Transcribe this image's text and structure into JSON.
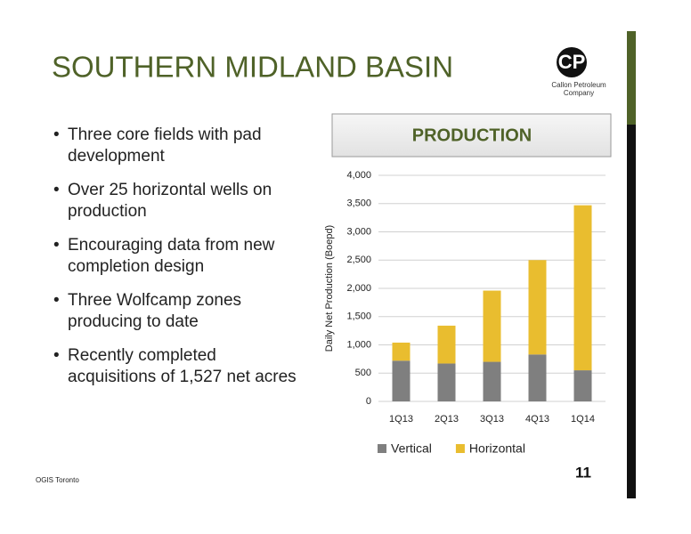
{
  "slide": {
    "title": "SOUTHERN MIDLAND BASIN",
    "logo_text": [
      "Callon Petroleum",
      "Company"
    ],
    "bullets": [
      "Three core fields with pad development",
      "Over 25 horizontal wells on production",
      "Encouraging data from new completion design",
      "Three Wolfcamp zones producing to date",
      "Recently completed acquisitions of 1,527 net acres"
    ],
    "footer": "OGIS Toronto",
    "page_number": "11"
  },
  "chart_data": {
    "type": "stacked_bar",
    "title": "PRODUCTION",
    "y_label": "Daily Net Production (Boepd)",
    "categories": [
      "1Q13",
      "2Q13",
      "3Q13",
      "4Q13",
      "1Q14"
    ],
    "series": [
      {
        "name": "Vertical",
        "color": "#7f7f7f",
        "values": [
          720,
          670,
          700,
          830,
          550
        ]
      },
      {
        "name": "Horizontal",
        "color": "#e9bd2f",
        "values": [
          320,
          670,
          1260,
          1670,
          2920
        ]
      }
    ],
    "ylim": [
      0,
      4000
    ],
    "yticks": [
      0,
      500,
      {
        "value": 1000,
        "label": "1,000"
      },
      {
        "value": 1500,
        "label": "1,500"
      },
      {
        "value": 2000,
        "label": "2,000"
      },
      {
        "value": 2500,
        "label": "2,500"
      },
      {
        "value": 3000,
        "label": "3,000"
      },
      {
        "value": 3500,
        "label": "3,500"
      },
      {
        "value": 4000,
        "label": "4,000"
      }
    ],
    "grid": true
  }
}
